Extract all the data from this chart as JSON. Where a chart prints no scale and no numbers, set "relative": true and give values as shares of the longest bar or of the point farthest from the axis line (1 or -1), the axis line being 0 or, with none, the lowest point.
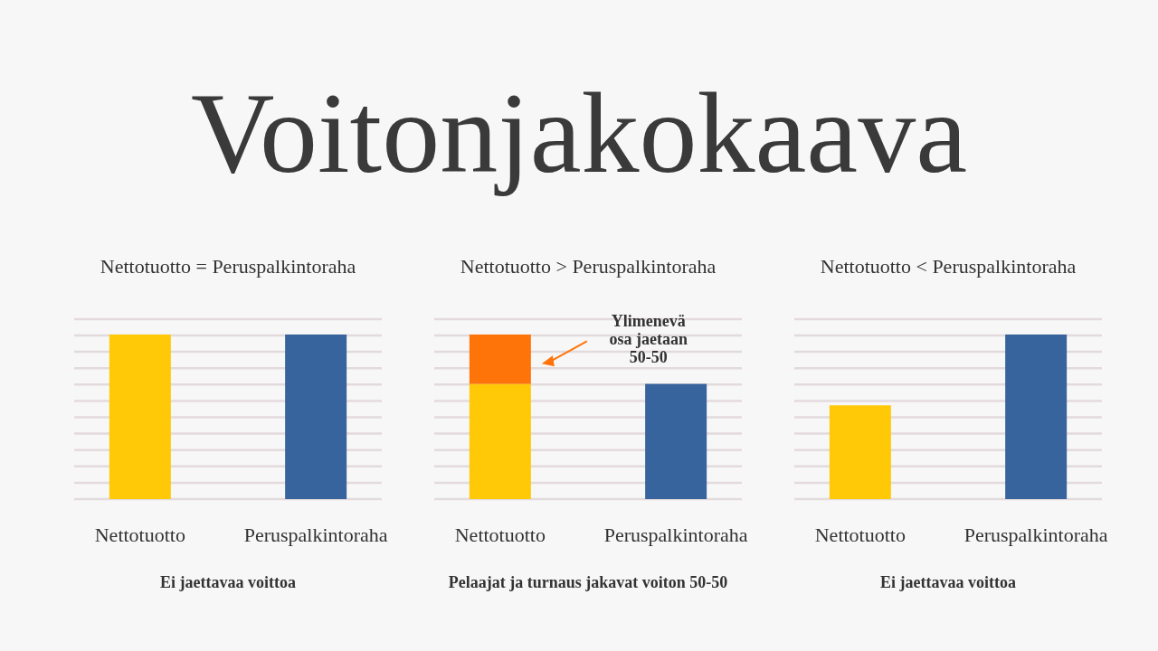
{
  "chart_data": [
    {
      "type": "bar",
      "title": "Voitonjakokaava",
      "subtitle": "Nettotuotto = Peruspalkintoraha",
      "categories": [
        "Nettotuotto",
        "Peruspalkintoraha"
      ],
      "values": [
        1,
        1
      ],
      "colors": [
        "#ffc907",
        "#37649c"
      ],
      "relative": true,
      "grid": true,
      "annotations": [
        "Ei jaettavaa voittoa"
      ]
    },
    {
      "type": "bar",
      "subtitle": "Nettotuotto > Peruspalkintoraha",
      "categories": [
        "Nettotuotto",
        "Peruspalkintoraha"
      ],
      "stacked": true,
      "relative": true,
      "grid": true,
      "series": [
        {
          "colors": [
            "#ffc907",
            "#37649c"
          ],
          "values": [
            0.7,
            0.7
          ]
        },
        {
          "color": "#ff7409",
          "values": [
            0.3,
            null
          ]
        }
      ],
      "annotations": [
        "Ylimenevä osa jaetaan 50-50",
        "Pelaajat ja turnaus jakavat voiton 50-50"
      ]
    },
    {
      "type": "bar",
      "subtitle": "Nettotuotto < Peruspalkintoraha",
      "categories": [
        "Nettotuotto",
        "Peruspalkintoraha"
      ],
      "values": [
        0.57,
        1
      ],
      "colors": [
        "#ffc907",
        "#37649c"
      ],
      "relative": true,
      "grid": true,
      "annotations": [
        "Ei jaettavaa voittoa"
      ]
    }
  ]
}
